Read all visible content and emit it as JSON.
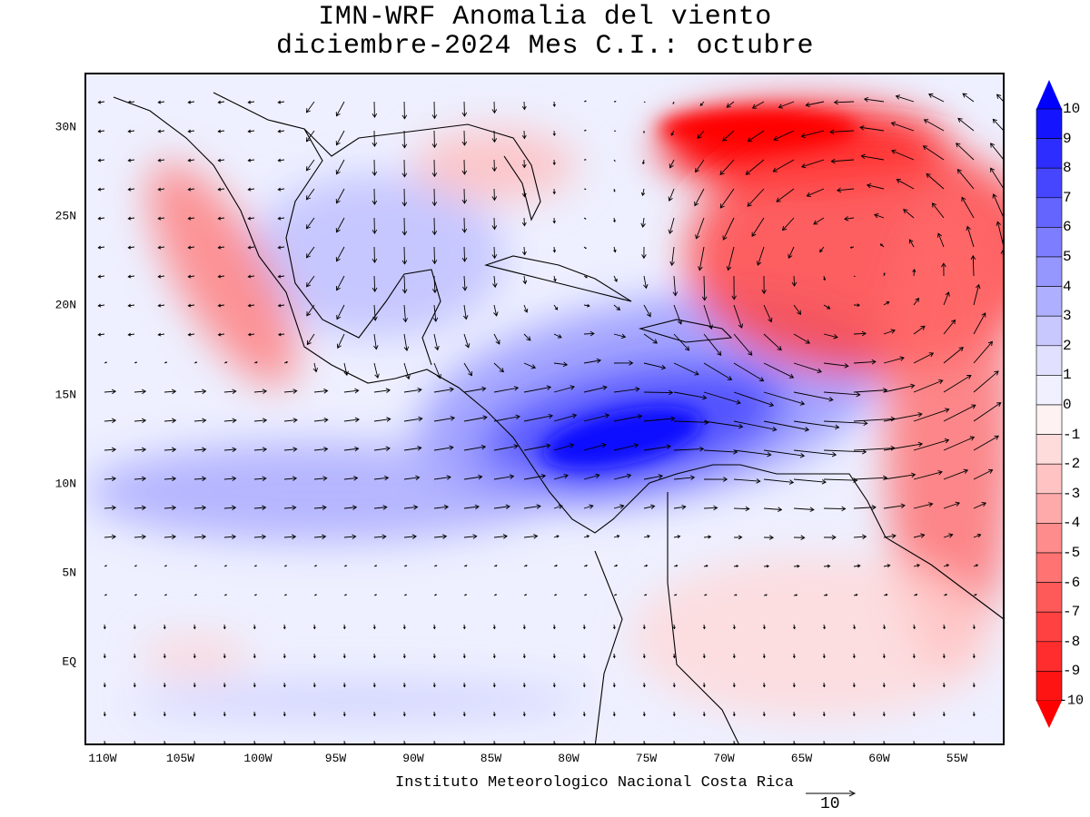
{
  "title": {
    "line1": "IMN-WRF Anomalia del viento",
    "line2": "diciembre-2024 Mes C.I.: octubre"
  },
  "credit": "Instituto Meteorologico Nacional Costa Rica",
  "reference_vector": {
    "value": "10"
  },
  "map": {
    "type": "wind anomaly vector field with shaded anomaly contours",
    "x_ticks": [
      "110W",
      "105W",
      "100W",
      "95W",
      "90W",
      "85W",
      "80W",
      "75W",
      "70W",
      "65W",
      "60W",
      "55W"
    ],
    "y_ticks": [
      "30N",
      "25N",
      "20N",
      "15N",
      "10N",
      "5N",
      "EQ"
    ],
    "lon_range": [
      -111,
      -51
    ],
    "lat_range": [
      -4.5,
      33
    ]
  },
  "colorbar": {
    "labels": [
      "10",
      "9",
      "8",
      "7",
      "6",
      "5",
      "4",
      "3",
      "2",
      "1",
      "0",
      "-1",
      "-2",
      "-3",
      "-4",
      "-5",
      "-6",
      "-7",
      "-8",
      "-9",
      "-10"
    ],
    "colors": [
      "#1414ff",
      "#2d2dff",
      "#4646ff",
      "#6464ff",
      "#7d7dff",
      "#9696ff",
      "#afafff",
      "#c8c8ff",
      "#e1e1ff",
      "#f0f0ff",
      "#fff2f2",
      "#ffdcdc",
      "#ffc3c3",
      "#ffaaaa",
      "#ff8c8c",
      "#ff7373",
      "#ff5a5a",
      "#ff4141",
      "#ff2d2d",
      "#ff1414"
    ],
    "over_color": "#0000ff",
    "under_color": "#ff0000"
  }
}
